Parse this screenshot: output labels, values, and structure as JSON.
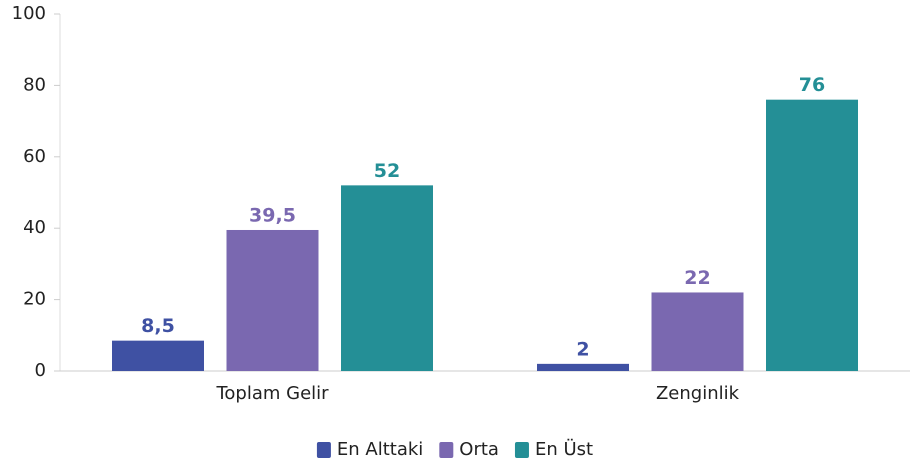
{
  "chart_data": {
    "type": "bar",
    "categories": [
      "Toplam Gelir",
      "Zenginlik"
    ],
    "series": [
      {
        "name": "En Alttaki",
        "color": "#3f51a3",
        "values": [
          8.5,
          2
        ],
        "value_labels": [
          "8,5",
          "2"
        ]
      },
      {
        "name": "Orta",
        "color": "#7a68b0",
        "values": [
          39.5,
          22
        ],
        "value_labels": [
          "39,5",
          "22"
        ]
      },
      {
        "name": "En Üst",
        "color": "#248f96",
        "values": [
          52,
          76
        ],
        "value_labels": [
          "52",
          "76"
        ]
      }
    ],
    "ylim": [
      0,
      100
    ],
    "yticks": [
      0,
      20,
      40,
      60,
      80,
      100
    ],
    "legend": "bottom"
  }
}
